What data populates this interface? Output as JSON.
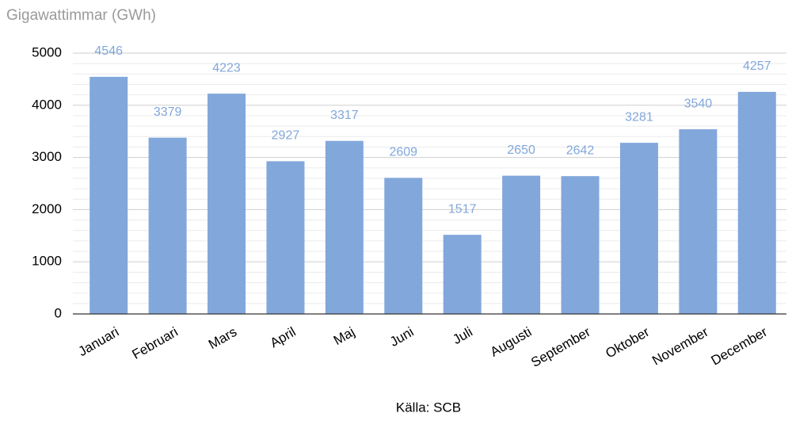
{
  "chart_data": {
    "type": "bar",
    "title": "Gigawattimmar (GWh)",
    "categories": [
      "Januari",
      "Februari",
      "Mars",
      "April",
      "Maj",
      "Juni",
      "Juli",
      "Augusti",
      "September",
      "Oktober",
      "November",
      "December"
    ],
    "values": [
      4546,
      3379,
      4223,
      2927,
      3317,
      2609,
      1517,
      2650,
      2642,
      3281,
      3540,
      4257
    ],
    "color": "#82a7db",
    "value_label_color": "#82a7db",
    "ylim": [
      0,
      5000
    ],
    "yticks": [
      0,
      1000,
      2000,
      3000,
      4000,
      5000
    ],
    "grid": true,
    "minor_grid_divisions": 5,
    "source": "Källa: SCB"
  }
}
